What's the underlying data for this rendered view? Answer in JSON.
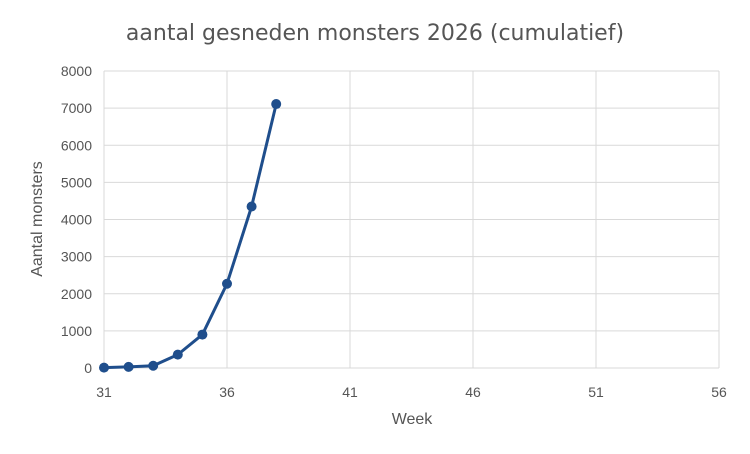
{
  "chart_data": {
    "type": "line",
    "title": "aantal gesneden monsters 2026 (cumulatief)",
    "xlabel": "Week",
    "ylabel": "Aantal monsters",
    "xlim": [
      31,
      56
    ],
    "ylim": [
      0,
      8000
    ],
    "x_ticks": [
      31,
      36,
      41,
      46,
      51,
      56
    ],
    "y_ticks": [
      0,
      1000,
      2000,
      3000,
      4000,
      5000,
      6000,
      7000,
      8000
    ],
    "grid": true,
    "legend": "none",
    "series": [
      {
        "color": "#1f4e8c",
        "x": [
          31,
          32,
          33,
          34,
          35,
          36,
          37,
          38
        ],
        "y": [
          10,
          30,
          60,
          360,
          900,
          2270,
          4350,
          7110
        ]
      }
    ]
  }
}
